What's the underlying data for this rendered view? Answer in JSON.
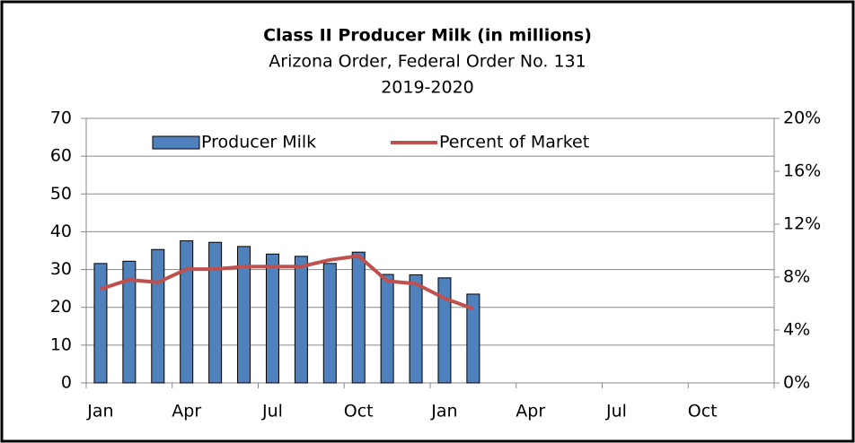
{
  "chart_data": {
    "type": "bar",
    "title": "Class II Producer Milk (in millions)",
    "subtitle": "Arizona Order, Federal Order No. 131",
    "subtitle2": "2019-2020",
    "categories": [
      "Jan",
      null,
      null,
      "Apr",
      null,
      null,
      "Jul",
      null,
      null,
      "Oct",
      null,
      null,
      "Jan",
      null,
      null,
      "Apr",
      null,
      null,
      "Jul",
      null,
      null,
      "Oct",
      null,
      null
    ],
    "series": [
      {
        "name": "Producer Milk",
        "color": "#4f81bd",
        "type": "bar",
        "values": [
          31.6,
          32.2,
          35.3,
          37.6,
          37.2,
          36.1,
          34.1,
          33.5,
          31.6,
          34.6,
          28.7,
          28.6,
          27.8,
          23.5,
          null,
          null,
          null,
          null,
          null,
          null,
          null,
          null,
          null,
          null
        ]
      },
      {
        "name": "Percent of Market",
        "color": "#c0504d",
        "type": "line",
        "axis": "y2",
        "values": [
          7.1,
          7.8,
          7.6,
          8.6,
          8.6,
          8.8,
          8.8,
          8.8,
          9.3,
          9.6,
          7.7,
          7.5,
          6.4,
          5.6,
          null,
          null,
          null,
          null,
          null,
          null,
          null,
          null,
          null,
          null
        ]
      }
    ],
    "ylim": [
      0,
      70
    ],
    "yticks": [
      0,
      10,
      20,
      30,
      40,
      50,
      60,
      70
    ],
    "y2lim": [
      0,
      20
    ],
    "y2ticks": [
      {
        "value": 0,
        "label": "0%"
      },
      {
        "value": 4,
        "label": "4%"
      },
      {
        "value": 8,
        "label": "8%"
      },
      {
        "value": 12,
        "label": "12%"
      },
      {
        "value": 16,
        "label": "16%"
      },
      {
        "value": 20,
        "label": "20%"
      }
    ],
    "grid": true,
    "legend": "top"
  }
}
